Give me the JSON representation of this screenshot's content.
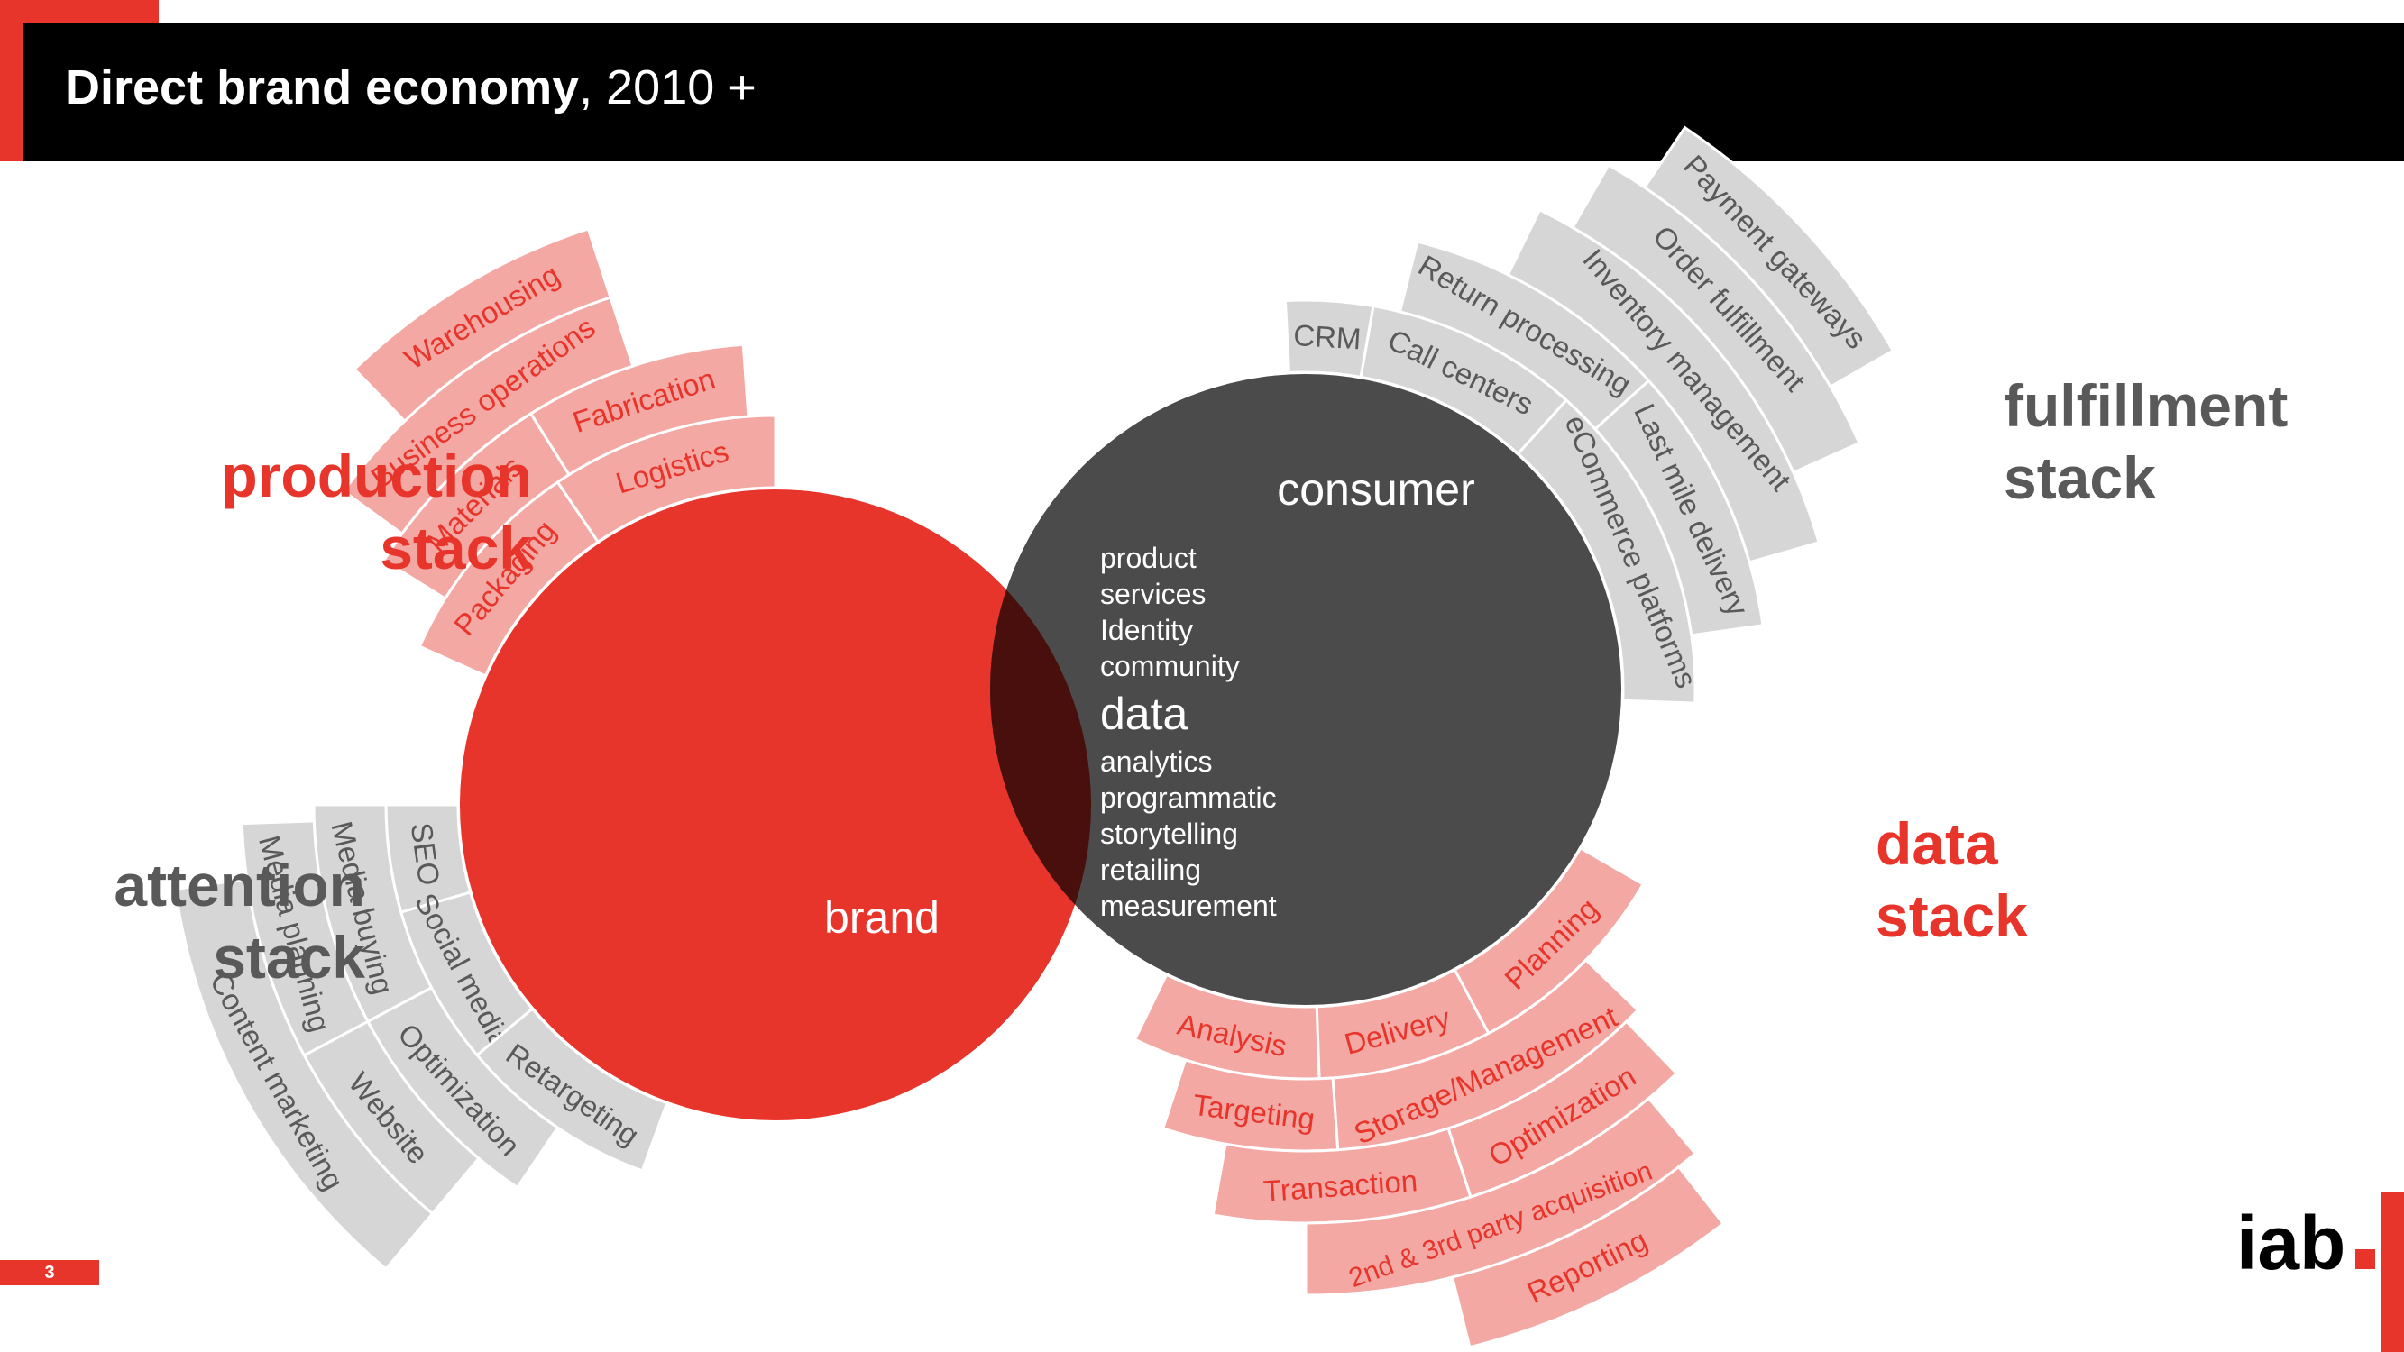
{
  "header": {
    "title_bold": "Direct brand economy",
    "title_rest": ", 2010 +"
  },
  "colors": {
    "red": "#e8352b",
    "pink": "#f4a8a4",
    "gray_circle": "#4b4b4b",
    "gray_segment": "#d6d6d6",
    "overlap": "#480f0c",
    "gray_text": "#595959",
    "pink_text": "#e8352b"
  },
  "labels": {
    "production": [
      "production",
      "stack"
    ],
    "fulfillment": [
      "fulfillment",
      "stack"
    ],
    "attention": [
      "attention",
      "stack"
    ],
    "data": [
      "data",
      "stack"
    ]
  },
  "circles": {
    "brand": "brand",
    "consumer": "consumer"
  },
  "center": {
    "items_top": [
      "product",
      "services",
      "Identity",
      "community"
    ],
    "highlight": "data",
    "items_bottom": [
      "analytics",
      "programmatic",
      "storytelling",
      "retailing",
      "measurement"
    ]
  },
  "production_stack": {
    "ring1": [
      "Packaging",
      "Logistics"
    ],
    "ring2": [
      "Materials",
      "Fabrication"
    ],
    "ring3": [
      "Business operations"
    ],
    "ring4": [
      "Warehousing"
    ]
  },
  "fulfillment_stack": {
    "ring1": [
      "CRM"
    ],
    "ring2": [
      "Call centers",
      "eCommerce platforms"
    ],
    "ring3": [
      "Return processing",
      "Last mile delivery"
    ],
    "ring4": [
      "Inventory management"
    ],
    "ring5": [
      "Order fulfillment"
    ],
    "ring6": [
      "Payment gateways"
    ]
  },
  "attention_stack": {
    "ring1": [
      "SEO",
      "Social media",
      "Retargeting"
    ],
    "ring2": [
      "Media buying",
      "Optimization"
    ],
    "ring3": [
      "Media planning",
      "Website"
    ],
    "ring4": [
      "Content marketing"
    ]
  },
  "data_stack": {
    "ring1": [
      "Analysis",
      "Delivery",
      "Planning"
    ],
    "ring2": [
      "Targeting",
      "Storage/Management"
    ],
    "ring3": [
      "Transaction",
      "Optimization"
    ],
    "ring4": [
      "2nd & 3rd party acquisition"
    ],
    "ring5": [
      "Reporting"
    ]
  },
  "footer": {
    "page_number": "3",
    "logo_text": "iab"
  }
}
